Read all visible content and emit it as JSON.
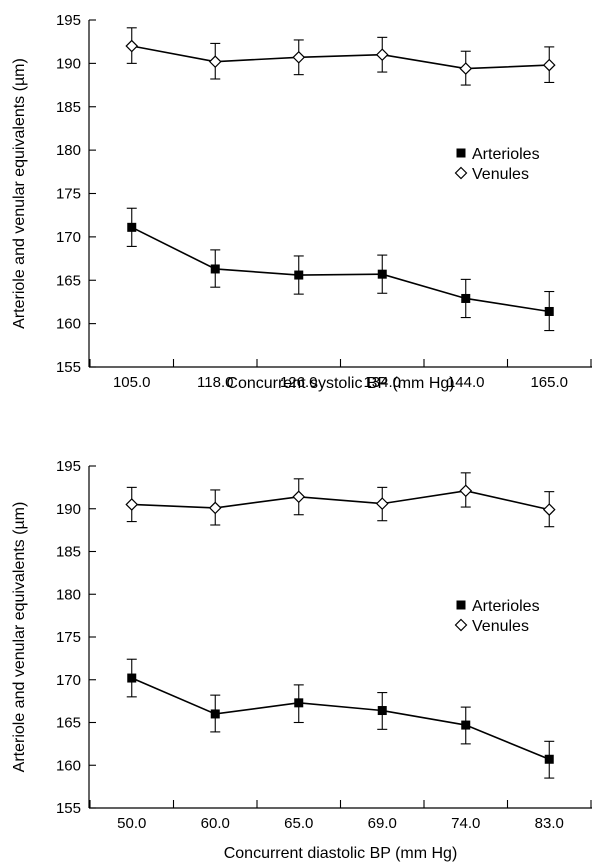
{
  "chart_data": [
    {
      "type": "line",
      "categories": [
        "105.0",
        "118.0",
        "126.0",
        "134.0",
        "144.0",
        "165.0"
      ],
      "xlabel": "Concurrent systolic BP (mm Hg)",
      "ylabel": "Arteriole and venular equivalents (µm)",
      "ylim": [
        155,
        195
      ],
      "yticks": [
        "155",
        "160",
        "165",
        "170",
        "175",
        "180",
        "185",
        "190",
        "195"
      ],
      "legend_position": "right",
      "series": [
        {
          "name": "Arterioles",
          "marker": "filled-square",
          "values": [
            171.1,
            166.3,
            165.6,
            165.7,
            162.9,
            161.4
          ],
          "err_low": [
            168.9,
            164.2,
            163.4,
            163.5,
            160.7,
            159.2
          ],
          "err_high": [
            173.3,
            168.5,
            167.8,
            167.9,
            165.1,
            163.7
          ]
        },
        {
          "name": "Venules",
          "marker": "open-diamond",
          "values": [
            192.0,
            190.2,
            190.7,
            191.0,
            189.4,
            189.8
          ],
          "err_low": [
            190.0,
            188.2,
            188.7,
            189.0,
            187.5,
            187.8
          ],
          "err_high": [
            194.1,
            192.3,
            192.7,
            193.0,
            191.4,
            191.9
          ]
        }
      ]
    },
    {
      "type": "line",
      "categories": [
        "50.0",
        "60.0",
        "65.0",
        "69.0",
        "74.0",
        "83.0"
      ],
      "xlabel": "Concurrent diastolic BP (mm Hg)",
      "ylabel": "Arteriole and venular equivalents (µm)",
      "ylim": [
        155,
        195
      ],
      "yticks": [
        "155",
        "160",
        "165",
        "170",
        "175",
        "180",
        "185",
        "190",
        "195"
      ],
      "legend_position": "right",
      "series": [
        {
          "name": "Arterioles",
          "marker": "filled-square",
          "values": [
            170.2,
            166.0,
            167.3,
            166.4,
            164.7,
            160.7
          ],
          "err_low": [
            168.0,
            163.9,
            165.0,
            164.2,
            162.5,
            158.5
          ],
          "err_high": [
            172.4,
            168.2,
            169.4,
            168.5,
            166.8,
            162.8
          ]
        },
        {
          "name": "Venules",
          "marker": "open-diamond",
          "values": [
            190.5,
            190.1,
            191.4,
            190.6,
            192.1,
            189.9
          ],
          "err_low": [
            188.5,
            188.1,
            189.3,
            188.6,
            190.2,
            187.9
          ],
          "err_high": [
            192.5,
            192.2,
            193.5,
            192.5,
            194.2,
            192.0
          ]
        }
      ]
    }
  ]
}
